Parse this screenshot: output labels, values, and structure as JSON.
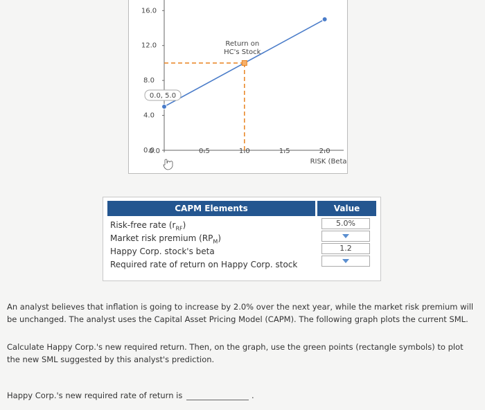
{
  "chart_data": {
    "type": "line",
    "x": [
      0,
      1,
      2
    ],
    "values": [
      5,
      10,
      15
    ],
    "color": "#4a7cc9",
    "xlim": [
      0,
      2.15
    ],
    "ylim": [
      0,
      16.5
    ],
    "xticks": [
      {
        "value": 0,
        "label": "0.0"
      },
      0.5,
      {
        "value": 1,
        "label": "1.0"
      },
      1.5,
      {
        "value": 2,
        "label": "2.0"
      }
    ],
    "yticks": [
      {
        "value": 0,
        "label": "0.0"
      },
      {
        "value": 4,
        "label": "4.0"
      },
      {
        "value": 8,
        "label": "8.0"
      },
      {
        "value": 12,
        "label": "12.0"
      },
      {
        "value": 16,
        "label": "16.0"
      }
    ],
    "xlabel": "RISK (Beta)",
    "start_label": "0.0, 5.0",
    "marker": {
      "x": 1,
      "y": 10,
      "color": "#e8821e",
      "label": [
        "Return on",
        "HC's Stock"
      ]
    }
  },
  "table": {
    "headers": [
      "CAPM Elements",
      "Value"
    ],
    "rows": [
      {
        "label": [
          "Risk-free rate (r",
          "RF",
          ")"
        ],
        "value": "5.0%"
      },
      {
        "label": [
          "Market risk premium (RP",
          "M",
          ")"
        ],
        "value": null
      },
      {
        "label": [
          "Happy Corp. stock's beta"
        ],
        "value": 1.2
      },
      {
        "label": [
          "Required rate of return on Happy Corp. stock"
        ],
        "value": null
      }
    ]
  },
  "text": [
    "An analyst believes that inflation is going to increase by 2.0% over the next year, while the market risk premium will be unchanged. The analyst uses the Capital Asset Pricing Model (CAPM). The following graph plots the current SML.",
    "Calculate Happy Corp.'s new required return. Then, on the graph, use the green points (rectangle symbols) to plot the new SML suggested by this analyst's prediction.",
    "Happy Corp.'s new required rate of return is"
  ]
}
